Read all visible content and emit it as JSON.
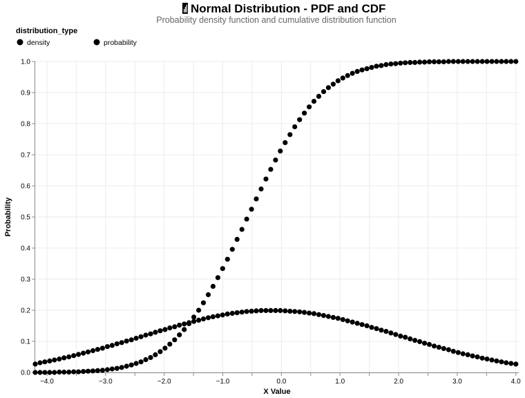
{
  "chart_data": {
    "type": "scatter",
    "title": "Normal Distribution - PDF and CDF",
    "title_icon": "bar-chart-icon",
    "subtitle": "Probability density function and cumulative distribution function",
    "xlabel": "X Value",
    "ylabel": "Probability",
    "xlim": [
      -4.2,
      4.05
    ],
    "ylim": [
      0,
      1
    ],
    "x_ticks": [
      -4.0,
      -3.0,
      -2.0,
      -1.0,
      0.0,
      1.0,
      2.0,
      3.0,
      4.0
    ],
    "x_tick_labels": [
      "−4.0",
      "−3.0",
      "−2.0",
      "−1.0",
      "0.0",
      "1.0",
      "2.0",
      "3.0",
      "4.0"
    ],
    "y_ticks": [
      0.0,
      0.1,
      0.2,
      0.3,
      0.4,
      0.5,
      0.6,
      0.7,
      0.8,
      0.9,
      1.0
    ],
    "y_tick_labels": [
      "0.0",
      "0.1",
      "0.2",
      "0.3",
      "0.4",
      "0.5",
      "0.6",
      "0.7",
      "0.8",
      "0.9",
      "1.0"
    ],
    "grid": true,
    "legend": {
      "title": "distribution_type",
      "placement": "top-left",
      "entries": [
        "density",
        "probability"
      ]
    },
    "x_range": {
      "start": -4.2,
      "end": 4.0,
      "count": 101
    },
    "marker_color": "#000000",
    "series": [
      {
        "name": "density",
        "values": [
          0.027,
          0.031,
          0.034,
          0.037,
          0.04,
          0.043,
          0.047,
          0.05,
          0.054,
          0.058,
          0.062,
          0.066,
          0.07,
          0.074,
          0.078,
          0.083,
          0.087,
          0.092,
          0.096,
          0.101,
          0.105,
          0.11,
          0.115,
          0.12,
          0.124,
          0.129,
          0.134,
          0.138,
          0.143,
          0.147,
          0.152,
          0.156,
          0.16,
          0.164,
          0.168,
          0.172,
          0.176,
          0.179,
          0.182,
          0.185,
          0.188,
          0.19,
          0.192,
          0.194,
          0.196,
          0.197,
          0.198,
          0.199,
          0.199,
          0.199,
          0.199,
          0.199,
          0.198,
          0.197,
          0.196,
          0.195,
          0.193,
          0.191,
          0.189,
          0.186,
          0.183,
          0.18,
          0.177,
          0.174,
          0.17,
          0.166,
          0.162,
          0.158,
          0.154,
          0.15,
          0.145,
          0.141,
          0.136,
          0.132,
          0.127,
          0.122,
          0.117,
          0.113,
          0.108,
          0.103,
          0.099,
          0.094,
          0.09,
          0.085,
          0.081,
          0.077,
          0.073,
          0.068,
          0.064,
          0.06,
          0.057,
          0.053,
          0.05,
          0.046,
          0.043,
          0.04,
          0.037,
          0.034,
          0.031,
          0.029,
          0.027
        ]
      },
      {
        "name": "probability",
        "values": [
          0.0,
          0.0,
          0.0,
          0.0,
          0.0,
          0.001,
          0.001,
          0.001,
          0.002,
          0.002,
          0.003,
          0.004,
          0.005,
          0.006,
          0.007,
          0.009,
          0.011,
          0.013,
          0.016,
          0.02,
          0.024,
          0.029,
          0.034,
          0.041,
          0.048,
          0.057,
          0.067,
          0.078,
          0.091,
          0.105,
          0.121,
          0.138,
          0.157,
          0.178,
          0.2,
          0.224,
          0.25,
          0.277,
          0.305,
          0.334,
          0.364,
          0.396,
          0.428,
          0.46,
          0.493,
          0.525,
          0.558,
          0.59,
          0.622,
          0.653,
          0.683,
          0.712,
          0.739,
          0.765,
          0.79,
          0.813,
          0.834,
          0.854,
          0.872,
          0.888,
          0.903,
          0.916,
          0.927,
          0.938,
          0.947,
          0.955,
          0.962,
          0.968,
          0.973,
          0.977,
          0.981,
          0.985,
          0.987,
          0.99,
          0.992,
          0.993,
          0.995,
          0.996,
          0.997,
          0.997,
          0.998,
          0.998,
          0.999,
          0.999,
          0.999,
          0.999,
          1.0,
          1.0,
          1.0,
          1.0,
          1.0,
          1.0,
          1.0,
          1.0,
          1.0,
          1.0,
          1.0,
          1.0,
          1.0,
          1.0,
          1.0
        ]
      }
    ]
  }
}
